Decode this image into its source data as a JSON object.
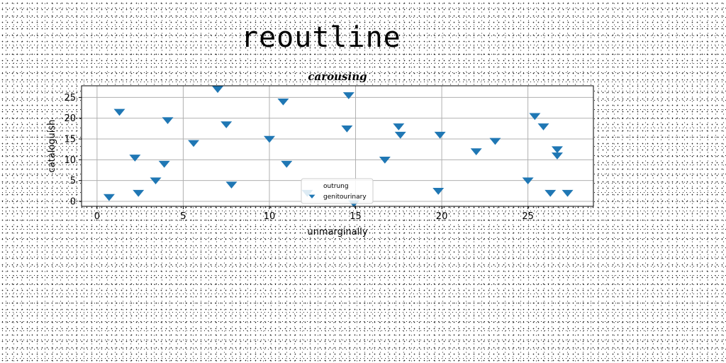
{
  "suptitle": "reoutline",
  "chart_data": {
    "type": "scatter",
    "title": "carousing",
    "xlabel": "unmarginally",
    "ylabel": "cataloguish",
    "xlim": [
      -0.9,
      28.8
    ],
    "ylim": [
      -1.2,
      27.8
    ],
    "xticks": [
      0,
      5,
      10,
      15,
      20,
      25
    ],
    "yticks": [
      0,
      5,
      10,
      15,
      20,
      25
    ],
    "grid": true,
    "legend_position": "lower-center",
    "series": [
      {
        "name": "outrung",
        "marker": "none",
        "color": "#ffffff",
        "x": [],
        "y": []
      },
      {
        "name": "genitourinary",
        "marker": "triangle-down",
        "color": "#1f77b4",
        "x": [
          0.7,
          1.3,
          2.2,
          2.4,
          3.4,
          3.9,
          4.1,
          5.6,
          7.0,
          7.5,
          7.8,
          10.0,
          10.8,
          11.0,
          12.2,
          14.5,
          14.6,
          14.9,
          16.7,
          17.5,
          17.6,
          19.8,
          19.9,
          22.0,
          23.1,
          25.0,
          25.4,
          25.9,
          26.3,
          26.7,
          26.7,
          27.3
        ],
        "y": [
          1.0,
          21.5,
          10.5,
          2.0,
          5.0,
          9.0,
          19.5,
          14.0,
          27.0,
          18.5,
          4.0,
          15.0,
          24.0,
          9.0,
          2.0,
          17.5,
          25.5,
          -0.5,
          10.0,
          18.0,
          16.0,
          2.5,
          16.0,
          12.0,
          14.5,
          5.0,
          20.5,
          18.0,
          2.0,
          11.0,
          12.5,
          2.0
        ]
      }
    ]
  }
}
